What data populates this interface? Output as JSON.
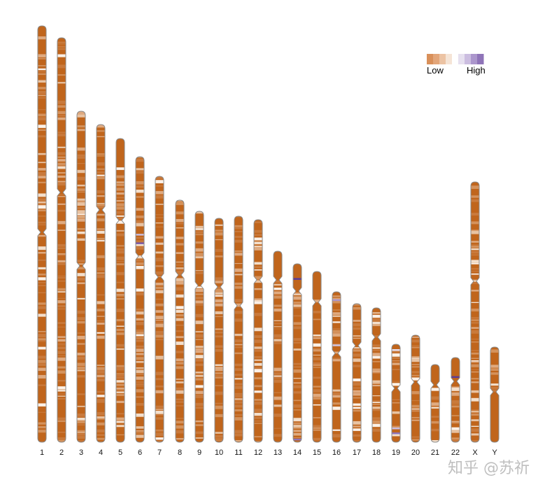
{
  "chart_data": {
    "type": "heatmap",
    "subtype": "chromosome ideogram density",
    "categories": [
      "1",
      "2",
      "3",
      "4",
      "5",
      "6",
      "7",
      "8",
      "9",
      "10",
      "11",
      "12",
      "13",
      "14",
      "15",
      "16",
      "17",
      "18",
      "19",
      "20",
      "21",
      "22",
      "X",
      "Y"
    ],
    "legend": {
      "low_label": "Low",
      "high_label": "High",
      "placement": "top-right",
      "colors": [
        "#d9905a",
        "#e3a67a",
        "#ecc3a3",
        "#f5e4d6",
        "#ffffff",
        "#e6e0ef",
        "#cbbde0",
        "#ab96cc",
        "#8f74b8"
      ]
    },
    "base_color": "#c0651c",
    "grid": false
  },
  "watermark": "知乎 @苏祈"
}
